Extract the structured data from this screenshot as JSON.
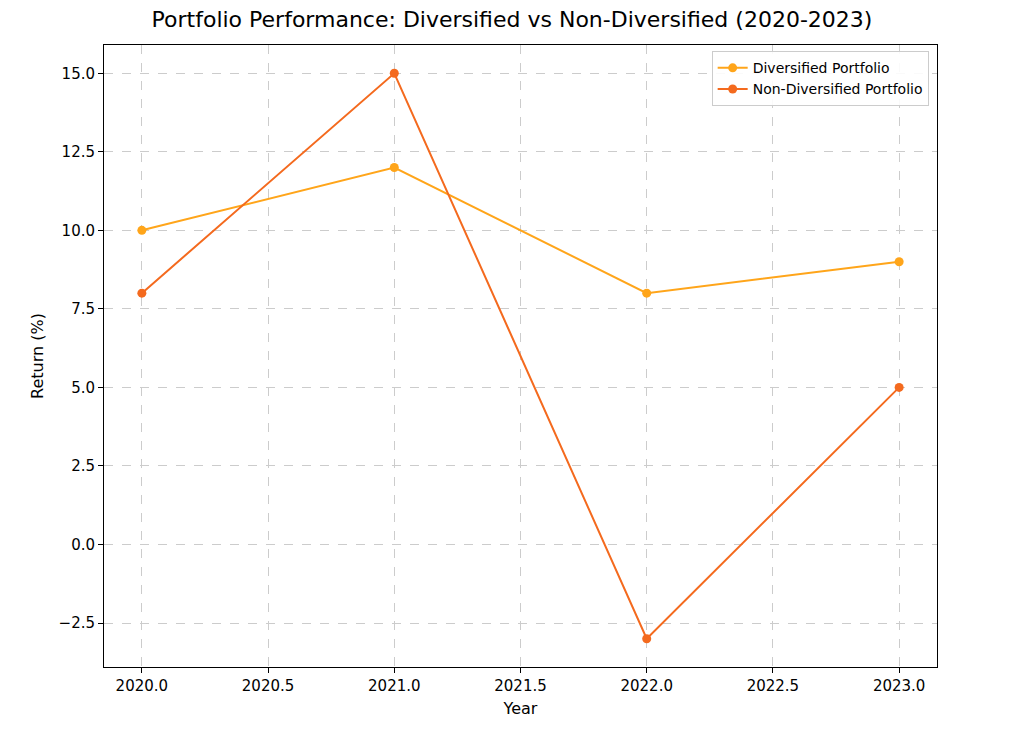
{
  "chart_data": {
    "type": "line",
    "title": "Portfolio Performance: Diversified vs Non-Diversified (2020-2023)",
    "x_label": "Year",
    "y_label": "Return (%)",
    "x": [
      2020,
      2021,
      2022,
      2023
    ],
    "series": [
      {
        "name": "Diversified Portfolio",
        "color": "#ffa51a",
        "marker": "circle",
        "line_style": "solid",
        "values": [
          10,
          12,
          8,
          9
        ]
      },
      {
        "name": "Non-Diversified Portfolio",
        "color": "#f46a1e",
        "marker": "circle",
        "line_style": "solid",
        "values": [
          8,
          15,
          -3,
          5
        ]
      }
    ],
    "xlim": [
      2019.85,
      2023.15
    ],
    "xticks": [
      {
        "value": 2020,
        "label": "2020.0"
      },
      {
        "value": 2020.5,
        "label": "2020.5"
      },
      {
        "value": 2021,
        "label": "2021.0"
      },
      {
        "value": 2021.5,
        "label": "2021.5"
      },
      {
        "value": 2022,
        "label": "2022.0"
      },
      {
        "value": 2022.5,
        "label": "2022.5"
      },
      {
        "value": 2023,
        "label": "2023.0"
      }
    ],
    "ylim": [
      -3.9,
      15.9
    ],
    "yticks": [
      {
        "value": -2.5,
        "label": "−2.5"
      },
      {
        "value": 0,
        "label": "0.0"
      },
      2.5,
      {
        "value": 5,
        "label": "5.0"
      },
      7.5,
      {
        "value": 10,
        "label": "10.0"
      },
      12.5,
      {
        "value": 15,
        "label": "15.0"
      }
    ],
    "grid": true,
    "legend": "upper right"
  }
}
